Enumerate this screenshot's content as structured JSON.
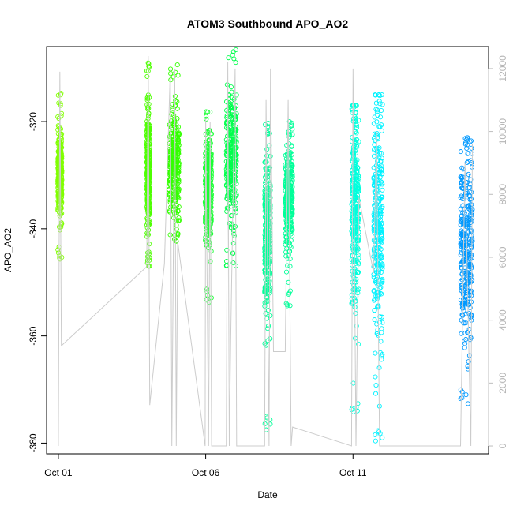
{
  "chart_data": {
    "type": "scatter",
    "title": "ATOM3 Southbound APO_AO2",
    "xlabel": "Date",
    "ylabel": "APO_AO2",
    "x_ticks": [
      "Oct 01",
      "Oct 06",
      "Oct 11"
    ],
    "x_tick_values_days": [
      1,
      6,
      11
    ],
    "xlim_days": [
      0.6,
      15.6
    ],
    "ylim": [
      -382,
      -306
    ],
    "y_ticks": [
      -380,
      -360,
      -340,
      -320
    ],
    "right_axis": {
      "ylim": [
        -250,
        12700
      ],
      "ticks": [
        0,
        2000,
        4000,
        6000,
        8000,
        10000,
        12000
      ],
      "color": "#bebebe",
      "line_color": "#cccccc"
    },
    "point_style": "open-circle",
    "grid": false,
    "segments": [
      {
        "name": "",
        "day_start": 0.98,
        "day_end": 1.12,
        "y_center": -330,
        "y_spread": 4,
        "y_min": -346,
        "y_max": -314,
        "color": "#80ff00"
      },
      {
        "name": "",
        "day_start": 4.0,
        "day_end": 4.1,
        "y_center": -330,
        "y_spread": 6,
        "y_min": -347,
        "y_max": -308,
        "color": "#4dff00"
      },
      {
        "name": "",
        "day_start": 4.75,
        "day_end": 5.1,
        "y_center": -328,
        "y_spread": 5,
        "y_min": -343,
        "y_max": -309,
        "color": "#33ff00"
      },
      {
        "name": "",
        "day_start": 5.98,
        "day_end": 6.2,
        "y_center": -333,
        "y_spread": 5,
        "y_min": -354,
        "y_max": -318,
        "color": "#1aff33"
      },
      {
        "name": "",
        "day_start": 6.7,
        "day_end": 7.05,
        "y_center": -327,
        "y_spread": 6,
        "y_min": -347,
        "y_max": -306,
        "color": "#00ff4d"
      },
      {
        "name": "",
        "day_start": 8.0,
        "day_end": 8.2,
        "y_center": -342,
        "y_spread": 8,
        "y_min": -378,
        "y_max": -320,
        "color": "#00ff99"
      },
      {
        "name": "",
        "day_start": 8.7,
        "day_end": 8.95,
        "y_center": -335,
        "y_spread": 5,
        "y_min": -355,
        "y_max": -320,
        "color": "#00ff99"
      },
      {
        "name": "",
        "day_start": 10.95,
        "day_end": 11.2,
        "y_center": -335,
        "y_spread": 10,
        "y_min": -375,
        "y_max": -317,
        "color": "#00ffdd"
      },
      {
        "name": "",
        "day_start": 11.7,
        "day_end": 12.0,
        "y_center": -340,
        "y_spread": 11,
        "y_min": -380,
        "y_max": -315,
        "color": "#00f2ff"
      },
      {
        "name": "",
        "day_start": 14.65,
        "day_end": 15.05,
        "y_center": -344,
        "y_spread": 9,
        "y_min": -373,
        "y_max": -323,
        "color": "#0099ff"
      }
    ],
    "right_series_points": [
      [
        1.0,
        0
      ],
      [
        1.05,
        11900
      ],
      [
        1.1,
        3200
      ],
      [
        1.12,
        3200
      ],
      [
        4.0,
        5700
      ],
      [
        4.05,
        12400
      ],
      [
        4.1,
        1300
      ],
      [
        4.6,
        5800
      ],
      [
        4.8,
        12000
      ],
      [
        4.85,
        0
      ],
      [
        4.95,
        12000
      ],
      [
        5.0,
        0
      ],
      [
        5.05,
        6500
      ],
      [
        5.98,
        0
      ],
      [
        6.0,
        10400
      ],
      [
        6.1,
        0
      ],
      [
        6.15,
        10300
      ],
      [
        6.2,
        0
      ],
      [
        6.3,
        0
      ],
      [
        6.7,
        0
      ],
      [
        6.75,
        12200
      ],
      [
        6.8,
        0
      ],
      [
        6.85,
        3400
      ],
      [
        7.0,
        12000
      ],
      [
        7.05,
        0
      ],
      [
        8.0,
        0
      ],
      [
        8.05,
        11000
      ],
      [
        8.15,
        0
      ],
      [
        8.2,
        12000
      ],
      [
        8.3,
        3000
      ],
      [
        8.7,
        3000
      ],
      [
        8.8,
        11000
      ],
      [
        8.9,
        0
      ],
      [
        8.95,
        600
      ],
      [
        10.95,
        0
      ],
      [
        11.0,
        12000
      ],
      [
        11.1,
        0
      ],
      [
        11.2,
        7900
      ],
      [
        11.7,
        5500
      ],
      [
        11.8,
        10000
      ],
      [
        11.9,
        0
      ],
      [
        12.0,
        0
      ],
      [
        14.65,
        0
      ],
      [
        14.8,
        9000
      ],
      [
        15.0,
        0
      ],
      [
        15.05,
        9600
      ]
    ]
  }
}
